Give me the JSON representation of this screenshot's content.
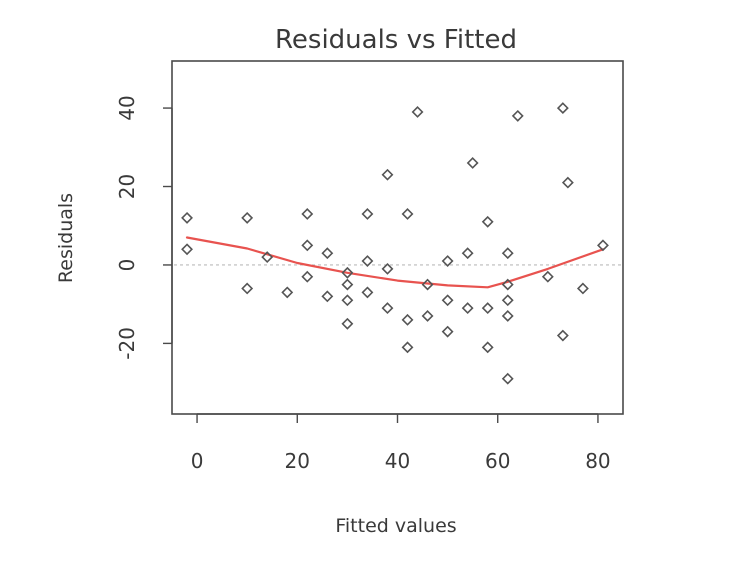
{
  "chart_data": {
    "type": "scatter",
    "title": "Residuals vs Fitted",
    "xlabel": "Fitted values",
    "ylabel": "Residuals",
    "xlim": [
      -5,
      85
    ],
    "ylim": [
      -38,
      52
    ],
    "xticks": [
      0,
      20,
      40,
      60,
      80
    ],
    "yticks": [
      -20,
      0,
      20,
      40
    ],
    "grid": false,
    "legend": "none",
    "point_color": "#555555",
    "smooth_color": "#e8534f",
    "zero_line_color": "#bbbbbb",
    "points": [
      {
        "x": -2,
        "y": 12
      },
      {
        "x": -2,
        "y": 4
      },
      {
        "x": 10,
        "y": 12
      },
      {
        "x": 10,
        "y": -6
      },
      {
        "x": 14,
        "y": 2
      },
      {
        "x": 18,
        "y": -7
      },
      {
        "x": 22,
        "y": 13
      },
      {
        "x": 22,
        "y": 5
      },
      {
        "x": 22,
        "y": -3
      },
      {
        "x": 26,
        "y": 3
      },
      {
        "x": 26,
        "y": -8
      },
      {
        "x": 30,
        "y": -2
      },
      {
        "x": 30,
        "y": -5
      },
      {
        "x": 30,
        "y": -9
      },
      {
        "x": 30,
        "y": -15
      },
      {
        "x": 34,
        "y": 13
      },
      {
        "x": 34,
        "y": 1
      },
      {
        "x": 34,
        "y": -7
      },
      {
        "x": 38,
        "y": 23
      },
      {
        "x": 38,
        "y": -1
      },
      {
        "x": 38,
        "y": -11
      },
      {
        "x": 42,
        "y": 13
      },
      {
        "x": 42,
        "y": -14
      },
      {
        "x": 42,
        "y": -21
      },
      {
        "x": 44,
        "y": 39
      },
      {
        "x": 46,
        "y": -5
      },
      {
        "x": 46,
        "y": -13
      },
      {
        "x": 50,
        "y": 1
      },
      {
        "x": 50,
        "y": -9
      },
      {
        "x": 50,
        "y": -17
      },
      {
        "x": 54,
        "y": 3
      },
      {
        "x": 54,
        "y": -11
      },
      {
        "x": 55,
        "y": 26
      },
      {
        "x": 58,
        "y": 11
      },
      {
        "x": 58,
        "y": -11
      },
      {
        "x": 58,
        "y": -21
      },
      {
        "x": 62,
        "y": 3
      },
      {
        "x": 62,
        "y": -5
      },
      {
        "x": 62,
        "y": -9
      },
      {
        "x": 62,
        "y": -13
      },
      {
        "x": 62,
        "y": -29
      },
      {
        "x": 64,
        "y": 38
      },
      {
        "x": 70,
        "y": -3
      },
      {
        "x": 73,
        "y": 40
      },
      {
        "x": 73,
        "y": -18
      },
      {
        "x": 74,
        "y": 21
      },
      {
        "x": 77,
        "y": -6
      },
      {
        "x": 81,
        "y": 5
      }
    ],
    "smooth_line": [
      {
        "x": -2,
        "y": 7
      },
      {
        "x": 10,
        "y": 4.2
      },
      {
        "x": 20,
        "y": 0.5
      },
      {
        "x": 30,
        "y": -2
      },
      {
        "x": 40,
        "y": -4
      },
      {
        "x": 50,
        "y": -5.2
      },
      {
        "x": 58,
        "y": -5.7
      },
      {
        "x": 62,
        "y": -4.3
      },
      {
        "x": 70,
        "y": -1
      },
      {
        "x": 81,
        "y": 4
      }
    ]
  }
}
